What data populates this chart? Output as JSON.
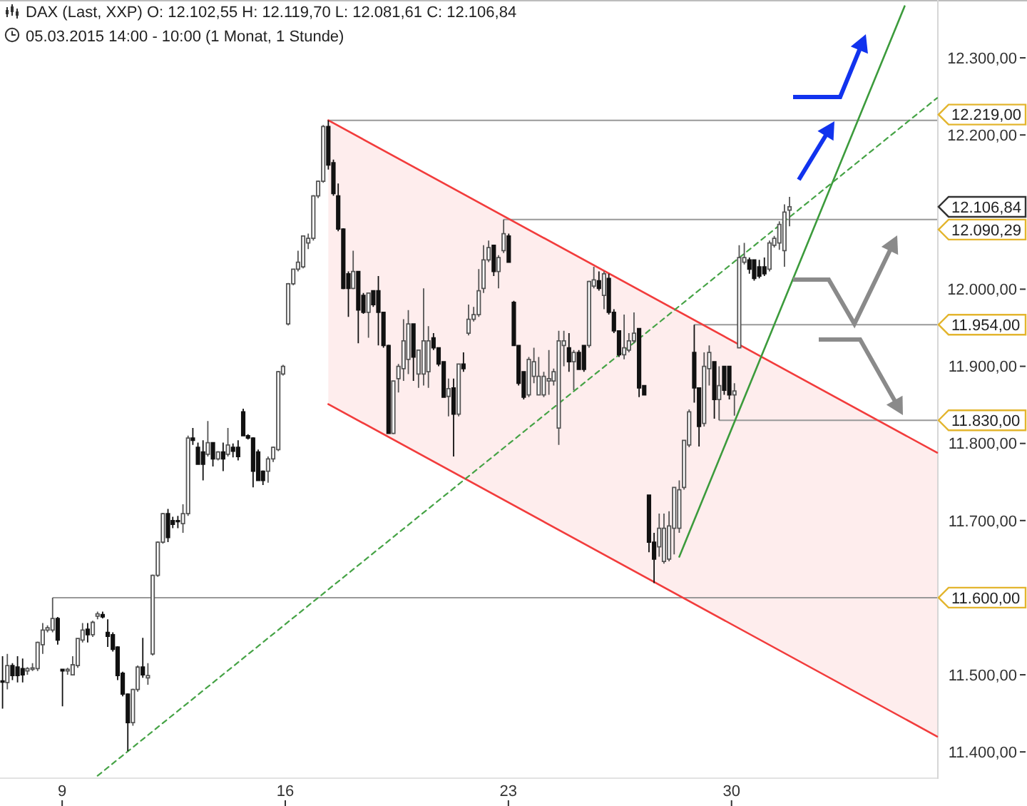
{
  "chart_data": {
    "type": "candlestick",
    "title": "DAX (Last, XXP) O: 12.102,55 H: 12.119,70 L: 12.081,61 C: 12.106,84",
    "subtitle": "05.03.2015 14:00 - 10:00 (1 Monat, 1 Stunde)",
    "x": [
      7.13,
      7.28,
      7.44,
      7.6,
      7.76,
      7.91,
      8.07,
      8.23,
      8.39,
      8.54,
      8.7,
      8.86,
      9.01,
      9.17,
      9.33,
      9.49,
      9.64,
      9.8,
      9.96,
      10.11,
      10.27,
      10.43,
      10.59,
      10.74,
      10.9,
      11.06,
      11.22,
      11.37,
      11.53,
      11.69,
      11.84,
      12,
      12.16,
      12.32,
      12.47,
      12.63,
      12.79,
      12.95,
      13.1,
      13.26,
      13.42,
      13.57,
      13.73,
      13.89,
      14.05,
      14.2,
      14.36,
      14.52,
      14.68,
      14.83,
      14.99,
      15.15,
      15.3,
      15.46,
      15.62,
      15.78,
      15.93,
      16.09,
      16.25,
      16.4,
      16.56,
      16.72,
      16.88,
      17.03,
      17.19,
      17.35,
      17.51,
      17.66,
      17.82,
      17.98,
      18.13,
      18.29,
      18.45,
      18.61,
      18.76,
      18.92,
      19.08,
      19.24,
      19.39,
      19.55,
      19.71,
      19.86,
      20.02,
      20.18,
      20.34,
      20.49,
      20.65,
      20.81,
      20.97,
      21.12,
      21.28,
      21.44,
      21.59,
      21.75,
      21.91,
      22.07,
      22.22,
      22.38,
      22.54,
      22.69,
      22.85,
      23.01,
      23.17,
      23.32,
      23.48,
      23.64,
      23.8,
      23.95,
      24.11,
      24.27,
      24.42,
      24.58,
      24.74,
      24.9,
      25.05,
      25.21,
      25.37,
      25.53,
      25.68,
      25.84,
      26,
      26.15,
      26.31,
      26.47,
      26.63,
      26.78,
      26.94,
      27.1,
      27.26,
      27.41,
      27.57,
      27.73,
      27.88,
      28.04,
      28.2,
      28.36,
      28.51,
      28.67,
      28.83,
      28.98,
      29.14,
      29.3,
      29.46,
      29.61,
      29.77,
      29.93,
      30.09,
      30.24,
      30.4,
      30.56,
      30.71,
      30.87,
      31.03,
      31.19,
      31.34,
      31.5,
      31.66,
      31.82
    ],
    "ohlc": [
      [
        11492,
        11524,
        11456,
        11491
      ],
      [
        11490,
        11527,
        11481,
        11512
      ],
      [
        11512,
        11515,
        11493,
        11499
      ],
      [
        11510,
        11524,
        11490,
        11499
      ],
      [
        11508,
        11521,
        11490,
        11500
      ],
      [
        11505,
        11510,
        11500,
        11508
      ],
      [
        11507,
        11515,
        11505,
        11509
      ],
      [
        11508,
        11543,
        11505,
        11542
      ],
      [
        11539,
        11567,
        11527,
        11558
      ],
      [
        11558,
        11564,
        11555,
        11561
      ],
      [
        11558,
        11600,
        11555,
        11573
      ],
      [
        11573,
        11575,
        11539,
        11545
      ],
      [
        11507,
        11508,
        11459,
        11505
      ],
      [
        11505,
        11509,
        11500,
        11507
      ],
      [
        11500,
        11524,
        11499,
        11513
      ],
      [
        11512,
        11548,
        11509,
        11547
      ],
      [
        11545,
        11567,
        11542,
        11558
      ],
      [
        11559,
        11567,
        11542,
        11552
      ],
      [
        11552,
        11570,
        11549,
        11568
      ],
      [
        11576,
        11582,
        11572,
        11579
      ],
      [
        11578,
        11582,
        11573,
        11575
      ],
      [
        11555,
        11572,
        11536,
        11550
      ],
      [
        11552,
        11555,
        11530,
        11533
      ],
      [
        11536,
        11537,
        11493,
        11499
      ],
      [
        11502,
        11504,
        11472,
        11475
      ],
      [
        11475,
        11476,
        11401,
        11438
      ],
      [
        11438,
        11482,
        11434,
        11481
      ],
      [
        11481,
        11512,
        11478,
        11510
      ],
      [
        11510,
        11548,
        11496,
        11500
      ],
      [
        11496,
        11515,
        11487,
        11499
      ],
      [
        11527,
        11630,
        11525,
        11629
      ],
      [
        11629,
        11673,
        11627,
        11672
      ],
      [
        11672,
        11710,
        11670,
        11709
      ],
      [
        11709,
        11715,
        11672,
        11678
      ],
      [
        11700,
        11705,
        11690,
        11695
      ],
      [
        11700,
        11706,
        11690,
        11699
      ],
      [
        11696,
        11721,
        11684,
        11709
      ],
      [
        11709,
        11810,
        11706,
        11807
      ],
      [
        11807,
        11820,
        11798,
        11804
      ],
      [
        11795,
        11801,
        11773,
        11773
      ],
      [
        11789,
        11804,
        11752,
        11773
      ],
      [
        11786,
        11829,
        11783,
        11801
      ],
      [
        11801,
        11801,
        11770,
        11780
      ],
      [
        11780,
        11790,
        11778,
        11789
      ],
      [
        11789,
        11801,
        11764,
        11780
      ],
      [
        11786,
        11820,
        11783,
        11798
      ],
      [
        11795,
        11800,
        11782,
        11790
      ],
      [
        11795,
        11804,
        11778,
        11783
      ],
      [
        11841,
        11845,
        11810,
        11810
      ],
      [
        11810,
        11812,
        11805,
        11807
      ],
      [
        11807,
        11808,
        11743,
        11764
      ],
      [
        11789,
        11792,
        11752,
        11752
      ],
      [
        11764,
        11765,
        11746,
        11752
      ],
      [
        11764,
        11783,
        11749,
        11780
      ],
      [
        11780,
        11796,
        11776,
        11795
      ],
      [
        11792,
        11894,
        11790,
        11893
      ],
      [
        11890,
        11902,
        11888,
        11900
      ],
      [
        11955,
        12008,
        11953,
        12007
      ],
      [
        12007,
        12026,
        12005,
        12026
      ],
      [
        12026,
        12050,
        12023,
        12035
      ],
      [
        12029,
        12069,
        12027,
        12069
      ],
      [
        12060,
        12072,
        12052,
        12066
      ],
      [
        12066,
        12122,
        12063,
        12121
      ],
      [
        12121,
        12141,
        12118,
        12140
      ],
      [
        12140,
        12213,
        12138,
        12211
      ],
      [
        12211,
        12219,
        12155,
        12161
      ],
      [
        12164,
        12168,
        12121,
        12124
      ],
      [
        12121,
        12137,
        12075,
        12078
      ],
      [
        12078,
        12079,
        12000,
        12001
      ],
      [
        12020,
        12023,
        11964,
        12001
      ],
      [
        12001,
        12050,
        12000,
        12023
      ],
      [
        12023,
        12023,
        11930,
        11973
      ],
      [
        11992,
        11995,
        11968,
        11970
      ],
      [
        11970,
        11995,
        11937,
        11995
      ],
      [
        11998,
        11998,
        11977,
        11980
      ],
      [
        11998,
        12017,
        11927,
        11970
      ],
      [
        11970,
        11970,
        11924,
        11927
      ],
      [
        11927,
        11928,
        11813,
        11813
      ],
      [
        11813,
        11881,
        11812,
        11881
      ],
      [
        11884,
        11903,
        11866,
        11900
      ],
      [
        11897,
        11961,
        11881,
        11933
      ],
      [
        11909,
        11973,
        11890,
        11955
      ],
      [
        11955,
        11955,
        11881,
        11912
      ],
      [
        11890,
        11921,
        11872,
        11921
      ],
      [
        11890,
        12001,
        11875,
        11933
      ],
      [
        11893,
        11952,
        11872,
        11933
      ],
      [
        11937,
        11943,
        11921,
        11924
      ],
      [
        11924,
        11924,
        11900,
        11903
      ],
      [
        11906,
        11906,
        11860,
        11860
      ],
      [
        11861,
        11884,
        11835,
        11871
      ],
      [
        11872,
        11884,
        11783,
        11838
      ],
      [
        11838,
        11903,
        11835,
        11903
      ],
      [
        11903,
        11918,
        11893,
        11897
      ],
      [
        11943,
        11980,
        11940,
        11961
      ],
      [
        11961,
        11977,
        11958,
        11967
      ],
      [
        11967,
        12026,
        11964,
        11998
      ],
      [
        12001,
        12057,
        11995,
        12038
      ],
      [
        12038,
        12063,
        12035,
        12054
      ],
      [
        12057,
        12057,
        12017,
        12023
      ],
      [
        12023,
        12044,
        12001,
        12041
      ],
      [
        12050,
        12090.29,
        12047,
        12072
      ],
      [
        12069,
        12072,
        12035,
        12035
      ],
      [
        11983,
        11985,
        11927,
        11927
      ],
      [
        11927,
        11927,
        11875,
        11878
      ],
      [
        11893,
        11893,
        11857,
        11860
      ],
      [
        11863,
        11912,
        11860,
        11909
      ],
      [
        11887,
        11924,
        11878,
        11906
      ],
      [
        11863,
        11912,
        11863,
        11887
      ],
      [
        11863,
        11893,
        11860,
        11887
      ],
      [
        11881,
        11921,
        11863,
        11884
      ],
      [
        11881,
        11897,
        11875,
        11893
      ],
      [
        11820,
        11946,
        11798,
        11933
      ],
      [
        11927,
        11946,
        11900,
        11933
      ],
      [
        11924,
        11943,
        11893,
        11906
      ],
      [
        11906,
        11921,
        11869,
        11918
      ],
      [
        11918,
        11921,
        11896,
        11896
      ],
      [
        11927,
        11927,
        11893,
        11896
      ],
      [
        11927,
        12011,
        11924,
        12010
      ],
      [
        12004,
        12029,
        12001,
        12012
      ],
      [
        12011,
        12023,
        11998,
        12001
      ],
      [
        11992,
        12023,
        11974,
        12020
      ],
      [
        12014,
        12020,
        11967,
        11970
      ],
      [
        11970,
        11974,
        11943,
        11946
      ],
      [
        11946,
        11946,
        11912,
        11915
      ],
      [
        11915,
        11967,
        11909,
        11924
      ],
      [
        11921,
        11943,
        11918,
        11933
      ],
      [
        11933,
        11970,
        11930,
        11943
      ],
      [
        11949,
        11949,
        11860,
        11872
      ],
      [
        11875,
        11875,
        11863,
        11863
      ],
      [
        11733,
        11733,
        11659,
        11672
      ],
      [
        11672,
        11684,
        11619,
        11650
      ],
      [
        11666,
        11709,
        11653,
        11690
      ],
      [
        11647,
        11709,
        11644,
        11690
      ],
      [
        11650,
        11712,
        11647,
        11693
      ],
      [
        11690,
        11743,
        11656,
        11743
      ],
      [
        11690,
        11752,
        11684,
        11740
      ],
      [
        11743,
        11804,
        11740,
        11804
      ],
      [
        11798,
        11844,
        11795,
        11841
      ],
      [
        11918,
        11954,
        11853,
        11872
      ],
      [
        11872,
        11872,
        11796,
        11822
      ],
      [
        11826,
        11918,
        11822,
        11900
      ],
      [
        11897,
        11927,
        11875,
        11918
      ],
      [
        11906,
        11906,
        11832,
        11857
      ],
      [
        11857,
        11900,
        11830,
        11875
      ],
      [
        11900,
        11900,
        11863,
        11869
      ],
      [
        11900,
        11900,
        11857,
        11863
      ],
      [
        11863,
        11878,
        11836,
        11868
      ],
      [
        11924,
        12057,
        11924,
        12041
      ],
      [
        12035,
        12060,
        12032,
        12041
      ],
      [
        12038,
        12041,
        12020,
        12026
      ],
      [
        12038,
        12038,
        12011,
        12014
      ],
      [
        12029,
        12038,
        12014,
        12017
      ],
      [
        12029,
        12041,
        12017,
        12020
      ],
      [
        12026,
        12063,
        12023,
        12060
      ],
      [
        12057,
        12069,
        12054,
        12066
      ],
      [
        12060,
        12088,
        12051,
        12084
      ],
      [
        12050,
        12110,
        12029,
        12100
      ],
      [
        12102.55,
        12119.7,
        12081.61,
        12106.84
      ]
    ],
    "xlim": [
      7.05,
      36.45
    ],
    "xticks": [
      9,
      16,
      23,
      30
    ],
    "ylim": [
      11365,
      12375
    ],
    "yticks": [
      {
        "value": 11400,
        "label": "11.400,00"
      },
      {
        "value": 11500,
        "label": "11.500,00"
      },
      {
        "value": 11700,
        "label": "11.700,00"
      },
      {
        "value": 11800,
        "label": "11.800,00"
      },
      {
        "value": 11900,
        "label": "11.900,00"
      },
      {
        "value": 12000,
        "label": "12.000,00"
      },
      {
        "value": 12200,
        "label": "12.200,00"
      },
      {
        "value": 12300,
        "label": "12.300,00"
      }
    ],
    "series": [
      {
        "type": "line",
        "color": "#f23c3c",
        "x": [
          17.35,
          36.45
        ],
        "values": [
          12219,
          11788
        ],
        "lower": [
          11851,
          11420
        ],
        "upper": [
          12219,
          11788
        ]
      },
      {
        "type": "line",
        "color": "#f23c3c",
        "x": [
          17.35,
          36.45
        ],
        "values": [
          11851,
          11420
        ]
      },
      {
        "type": "line",
        "color": "#3c9b3c",
        "x": [
          28.36,
          35.43
        ],
        "values": [
          11653,
          12367
        ]
      },
      {
        "type": "line",
        "color": "#46a346",
        "x": [
          10.11,
          36.45
        ],
        "values": [
          11369,
          12248
        ],
        "line_style": "dashed"
      }
    ],
    "ref_lines": [
      {
        "axis": "y",
        "value": 12219,
        "label": "12.219,00",
        "color": "#999999"
      },
      {
        "axis": "y",
        "value": 12090.29,
        "label": "12.090,29",
        "color": "#999999"
      },
      {
        "axis": "y",
        "value": 11954,
        "label": "11.954,00",
        "color": "#999999"
      },
      {
        "axis": "y",
        "value": 11830,
        "label": "11.830,00",
        "color": "#999999"
      },
      {
        "axis": "y",
        "value": 11600,
        "label": "11.600,00",
        "color": "#999999"
      }
    ],
    "annotations": [
      "12.106,84"
    ]
  }
}
